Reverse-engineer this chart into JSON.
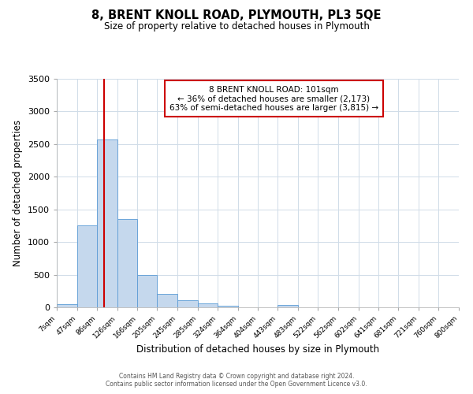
{
  "title": "8, BRENT KNOLL ROAD, PLYMOUTH, PL3 5QE",
  "subtitle": "Size of property relative to detached houses in Plymouth",
  "xlabel": "Distribution of detached houses by size in Plymouth",
  "ylabel": "Number of detached properties",
  "bar_color": "#c5d8ed",
  "bar_edge_color": "#5b9bd5",
  "background_color": "#ffffff",
  "grid_color": "#d0dce8",
  "annotation_box_color": "#ffffff",
  "annotation_box_edge_color": "#cc0000",
  "red_line_color": "#cc0000",
  "footer_line1": "Contains HM Land Registry data © Crown copyright and database right 2024.",
  "footer_line2": "Contains public sector information licensed under the Open Government Licence v3.0.",
  "annotation_line1": "8 BRENT KNOLL ROAD: 101sqm",
  "annotation_line2": "← 36% of detached houses are smaller (2,173)",
  "annotation_line3": "63% of semi-detached houses are larger (3,815) →",
  "bin_edges": [
    7,
    47,
    86,
    126,
    166,
    205,
    245,
    285,
    324,
    364,
    404,
    443,
    483,
    522,
    562,
    602,
    641,
    681,
    721,
    760,
    800
  ],
  "bin_labels": [
    "7sqm",
    "47sqm",
    "86sqm",
    "126sqm",
    "166sqm",
    "205sqm",
    "245sqm",
    "285sqm",
    "324sqm",
    "364sqm",
    "404sqm",
    "443sqm",
    "483sqm",
    "522sqm",
    "562sqm",
    "602sqm",
    "641sqm",
    "681sqm",
    "721sqm",
    "760sqm",
    "800sqm"
  ],
  "bar_heights": [
    50,
    1250,
    2575,
    1350,
    500,
    200,
    110,
    55,
    20,
    0,
    0,
    40,
    0,
    0,
    0,
    0,
    0,
    0,
    0,
    0
  ],
  "red_line_x": 101,
  "ylim": [
    0,
    3500
  ],
  "yticks": [
    0,
    500,
    1000,
    1500,
    2000,
    2500,
    3000,
    3500
  ]
}
